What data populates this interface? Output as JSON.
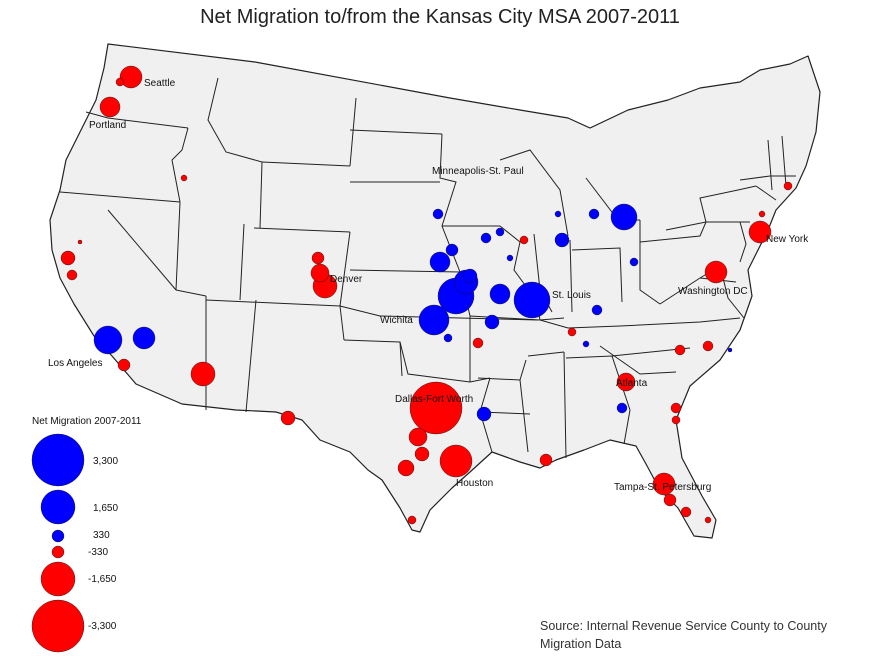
{
  "title": "Net Migration to/from the Kansas City MSA 2007-2011",
  "colors": {
    "inflow_to_kc": "#ff0000",
    "outflow_from_kc": "#0000ff",
    "land": "#f0f0f0",
    "border": "#222222"
  },
  "city_labels": {
    "seattle": "Seattle",
    "portland": "Portland",
    "minneapolis": "Minneapolis-St. Paul",
    "denver": "Denver",
    "new_york": "New York",
    "washington": "Washington DC",
    "st_louis": "St. Louis",
    "wichita": "Wichita",
    "los_angeles": "Los Angeles",
    "atlanta": "Atlanta",
    "dallas": "Dallas-Fort Worth",
    "houston": "Houston",
    "tampa": "Tampa-St. Petersburg"
  },
  "legend": {
    "title": "Net Migration 2007-2011",
    "entries": [
      {
        "label": "3,300",
        "value": 3300,
        "color": "blue"
      },
      {
        "label": "1,650",
        "value": 1650,
        "color": "blue"
      },
      {
        "label": "330",
        "value": 330,
        "color": "blue"
      },
      {
        "label": "-330",
        "value": -330,
        "color": "red"
      },
      {
        "label": "-1,650",
        "value": -1650,
        "color": "red"
      },
      {
        "label": "-3,300",
        "value": -3300,
        "color": "red"
      }
    ]
  },
  "source": "Source: Internal Revenue Service County to County Migration Data"
}
